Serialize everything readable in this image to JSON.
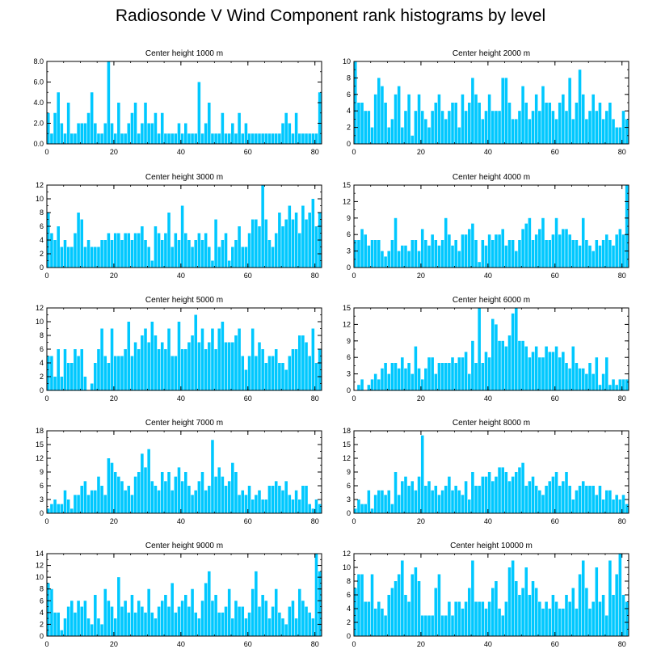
{
  "title": "Radiosonde V Wind Component rank histograms by level",
  "bar_color": "#00c8ff",
  "bar_edge_color": "#ffffff",
  "axis_color": "#000000",
  "chart_data": [
    {
      "type": "bar",
      "title": "Center height 1000 m",
      "xlim": [
        0,
        82
      ],
      "ylim": [
        0,
        8
      ],
      "yticks": [
        0,
        2,
        4,
        6,
        8
      ],
      "ytick_labels": [
        "0.0",
        "2.0",
        "4.0",
        "6.0",
        "8.0"
      ],
      "xticks": [
        0,
        20,
        40,
        60,
        80
      ],
      "xtick_labels": [
        "0",
        "20",
        "40",
        "60",
        "80"
      ],
      "values": [
        3,
        1,
        3,
        5,
        2,
        1,
        4,
        1,
        1,
        2,
        2,
        2,
        3,
        5,
        2,
        1,
        1,
        2,
        8,
        2,
        1,
        4,
        1,
        1,
        2,
        3,
        4,
        1,
        2,
        4,
        2,
        2,
        3,
        1,
        3,
        1,
        1,
        1,
        1,
        2,
        1,
        2,
        1,
        1,
        1,
        6,
        1,
        2,
        4,
        1,
        1,
        1,
        3,
        1,
        1,
        2,
        1,
        3,
        1,
        2,
        1,
        1,
        1,
        1,
        1,
        1,
        1,
        1,
        1,
        1,
        2,
        3,
        2,
        1,
        3,
        1,
        1,
        1,
        1,
        1,
        1,
        5
      ]
    },
    {
      "type": "bar",
      "title": "Center height 2000 m",
      "xlim": [
        0,
        82
      ],
      "ylim": [
        0,
        10
      ],
      "yticks": [
        0,
        2,
        4,
        6,
        8,
        10
      ],
      "ytick_labels": [
        "0",
        "2",
        "4",
        "6",
        "8",
        "10"
      ],
      "xticks": [
        0,
        20,
        40,
        60,
        80
      ],
      "xtick_labels": [
        "0",
        "20",
        "40",
        "60",
        "80"
      ],
      "values": [
        10,
        5,
        5,
        4,
        4,
        2,
        6,
        8,
        7,
        5,
        2,
        3,
        6,
        7,
        2,
        4,
        6,
        1,
        4,
        6,
        4,
        3,
        2,
        4,
        5,
        6,
        4,
        3,
        4,
        5,
        5,
        2,
        6,
        4,
        5,
        8,
        6,
        5,
        3,
        4,
        6,
        4,
        4,
        4,
        8,
        8,
        5,
        3,
        3,
        4,
        7,
        5,
        3,
        4,
        6,
        4,
        7,
        5,
        5,
        4,
        3,
        5,
        6,
        4,
        8,
        3,
        5,
        9,
        6,
        3,
        4,
        6,
        4,
        5,
        3,
        4,
        5,
        3,
        2,
        2,
        4,
        3
      ]
    },
    {
      "type": "bar",
      "title": "Center height 3000 m",
      "xlim": [
        0,
        82
      ],
      "ylim": [
        0,
        12
      ],
      "yticks": [
        0,
        2,
        4,
        6,
        8,
        10,
        12
      ],
      "ytick_labels": [
        "0",
        "2",
        "4",
        "6",
        "8",
        "10",
        "12"
      ],
      "xticks": [
        0,
        20,
        40,
        60,
        80
      ],
      "xtick_labels": [
        "0",
        "20",
        "40",
        "60",
        "80"
      ],
      "values": [
        8,
        5,
        4,
        6,
        3,
        4,
        3,
        3,
        5,
        8,
        7,
        3,
        4,
        3,
        3,
        3,
        4,
        4,
        5,
        4,
        5,
        5,
        4,
        5,
        5,
        4,
        5,
        5,
        6,
        4,
        3,
        1,
        6,
        5,
        4,
        5,
        8,
        3,
        5,
        4,
        9,
        5,
        4,
        3,
        4,
        5,
        4,
        5,
        3,
        1,
        7,
        3,
        4,
        5,
        1,
        3,
        4,
        6,
        3,
        3,
        5,
        7,
        7,
        6,
        12,
        7,
        4,
        3,
        5,
        8,
        6,
        7,
        9,
        7,
        8,
        5,
        9,
        7,
        8,
        10,
        6,
        8
      ]
    },
    {
      "type": "bar",
      "title": "Center height 4000 m",
      "xlim": [
        0,
        82
      ],
      "ylim": [
        0,
        15
      ],
      "yticks": [
        0,
        3,
        6,
        9,
        12,
        15
      ],
      "ytick_labels": [
        "0",
        "3",
        "6",
        "9",
        "12",
        "15"
      ],
      "xticks": [
        0,
        20,
        40,
        60,
        80
      ],
      "xtick_labels": [
        "0",
        "20",
        "40",
        "60",
        "80"
      ],
      "values": [
        5,
        5,
        7,
        6,
        4,
        5,
        5,
        5,
        3,
        2,
        3,
        5,
        9,
        3,
        4,
        4,
        3,
        5,
        5,
        3,
        7,
        5,
        4,
        6,
        5,
        4,
        5,
        9,
        6,
        4,
        5,
        3,
        6,
        6,
        7,
        8,
        5,
        1,
        5,
        4,
        6,
        5,
        6,
        6,
        7,
        4,
        5,
        5,
        3,
        5,
        7,
        8,
        9,
        5,
        6,
        7,
        9,
        5,
        5,
        6,
        9,
        6,
        7,
        7,
        6,
        5,
        5,
        4,
        9,
        5,
        4,
        3,
        5,
        4,
        5,
        6,
        5,
        4,
        6,
        7,
        6,
        15
      ]
    },
    {
      "type": "bar",
      "title": "Center height 5000 m",
      "xlim": [
        0,
        82
      ],
      "ylim": [
        0,
        12
      ],
      "yticks": [
        0,
        2,
        4,
        6,
        8,
        10,
        12
      ],
      "ytick_labels": [
        "0",
        "2",
        "4",
        "6",
        "8",
        "10",
        "12"
      ],
      "xticks": [
        0,
        20,
        40,
        60,
        80
      ],
      "xtick_labels": [
        "0",
        "20",
        "40",
        "60",
        "80"
      ],
      "values": [
        5,
        5,
        2,
        6,
        2,
        6,
        4,
        4,
        6,
        5,
        6,
        2,
        0,
        1,
        4,
        6,
        9,
        5,
        4,
        9,
        5,
        5,
        5,
        6,
        10,
        5,
        7,
        6,
        8,
        9,
        7,
        10,
        8,
        6,
        7,
        6,
        9,
        5,
        5,
        10,
        6,
        6,
        7,
        8,
        11,
        7,
        9,
        6,
        7,
        9,
        6,
        9,
        10,
        7,
        7,
        7,
        8,
        9,
        5,
        3,
        5,
        9,
        5,
        7,
        6,
        4,
        5,
        5,
        6,
        4,
        4,
        3,
        5,
        6,
        6,
        8,
        8,
        7,
        5,
        9,
        4,
        6
      ]
    },
    {
      "type": "bar",
      "title": "Center height 6000 m",
      "xlim": [
        0,
        82
      ],
      "ylim": [
        0,
        15
      ],
      "yticks": [
        0,
        3,
        6,
        9,
        12,
        15
      ],
      "ytick_labels": [
        "0",
        "3",
        "6",
        "9",
        "12",
        "15"
      ],
      "xticks": [
        0,
        20,
        40,
        60,
        80
      ],
      "xtick_labels": [
        "0",
        "20",
        "40",
        "60",
        "80"
      ],
      "values": [
        0,
        1,
        2,
        0,
        1,
        2,
        3,
        2,
        4,
        5,
        3,
        5,
        5,
        4,
        6,
        4,
        5,
        3,
        8,
        4,
        2,
        4,
        6,
        6,
        3,
        5,
        5,
        5,
        5,
        6,
        5,
        6,
        6,
        7,
        3,
        9,
        5,
        15,
        5,
        7,
        6,
        13,
        12,
        9,
        9,
        8,
        10,
        14,
        15,
        9,
        9,
        8,
        6,
        7,
        8,
        6,
        6,
        8,
        7,
        7,
        8,
        6,
        7,
        5,
        4,
        8,
        5,
        4,
        4,
        3,
        5,
        3,
        6,
        1,
        3,
        6,
        1,
        2,
        1,
        2,
        2,
        2
      ]
    },
    {
      "type": "bar",
      "title": "Center height 7000 m",
      "xlim": [
        0,
        82
      ],
      "ylim": [
        0,
        18
      ],
      "yticks": [
        0,
        3,
        6,
        9,
        12,
        15,
        18
      ],
      "ytick_labels": [
        "0",
        "3",
        "6",
        "9",
        "12",
        "15",
        "18"
      ],
      "xticks": [
        0,
        20,
        40,
        60,
        80
      ],
      "xtick_labels": [
        "0",
        "20",
        "40",
        "60",
        "80"
      ],
      "values": [
        1,
        2,
        3,
        2,
        2,
        5,
        3,
        1,
        4,
        4,
        6,
        7,
        4,
        5,
        5,
        8,
        6,
        4,
        12,
        11,
        9,
        8,
        7,
        5,
        6,
        4,
        8,
        9,
        13,
        10,
        14,
        7,
        6,
        5,
        9,
        7,
        9,
        5,
        8,
        10,
        7,
        9,
        6,
        4,
        5,
        7,
        9,
        5,
        6,
        16,
        8,
        10,
        8,
        6,
        7,
        11,
        9,
        4,
        5,
        4,
        6,
        3,
        4,
        5,
        3,
        3,
        6,
        6,
        7,
        6,
        5,
        7,
        4,
        3,
        5,
        3,
        6,
        6,
        2,
        1,
        3,
        2
      ]
    },
    {
      "type": "bar",
      "title": "Center height 8000 m",
      "xlim": [
        0,
        82
      ],
      "ylim": [
        0,
        18
      ],
      "yticks": [
        0,
        3,
        6,
        9,
        12,
        15,
        18
      ],
      "ytick_labels": [
        "0",
        "3",
        "6",
        "9",
        "12",
        "15",
        "18"
      ],
      "xticks": [
        0,
        20,
        40,
        60,
        80
      ],
      "xtick_labels": [
        "0",
        "20",
        "40",
        "60",
        "80"
      ],
      "values": [
        1,
        3,
        2,
        2,
        5,
        1,
        4,
        5,
        5,
        4,
        5,
        2,
        9,
        4,
        7,
        8,
        6,
        7,
        5,
        8,
        17,
        6,
        7,
        5,
        6,
        4,
        5,
        6,
        8,
        5,
        6,
        5,
        4,
        7,
        3,
        9,
        6,
        6,
        8,
        8,
        9,
        7,
        8,
        10,
        10,
        9,
        7,
        8,
        9,
        10,
        11,
        6,
        7,
        8,
        6,
        5,
        4,
        6,
        7,
        8,
        9,
        6,
        7,
        9,
        6,
        3,
        5,
        6,
        7,
        6,
        6,
        6,
        4,
        6,
        3,
        5,
        5,
        3,
        4,
        3,
        4,
        2
      ]
    },
    {
      "type": "bar",
      "title": "Center height 9000 m",
      "xlim": [
        0,
        82
      ],
      "ylim": [
        0,
        14
      ],
      "yticks": [
        0,
        2,
        4,
        6,
        8,
        10,
        12,
        14
      ],
      "ytick_labels": [
        "0",
        "2",
        "4",
        "6",
        "8",
        "10",
        "12",
        "14"
      ],
      "xticks": [
        0,
        20,
        40,
        60,
        80
      ],
      "xtick_labels": [
        "0",
        "20",
        "40",
        "60",
        "80"
      ],
      "values": [
        9,
        8,
        4,
        4,
        1,
        3,
        5,
        6,
        4,
        6,
        5,
        6,
        3,
        2,
        7,
        3,
        2,
        8,
        6,
        5,
        3,
        10,
        5,
        6,
        4,
        7,
        4,
        6,
        5,
        4,
        8,
        4,
        3,
        5,
        6,
        7,
        5,
        9,
        4,
        5,
        6,
        7,
        5,
        8,
        4,
        3,
        6,
        9,
        11,
        6,
        7,
        4,
        4,
        5,
        8,
        3,
        6,
        5,
        5,
        3,
        4,
        8,
        11,
        5,
        7,
        6,
        3,
        5,
        8,
        4,
        3,
        2,
        5,
        6,
        3,
        8,
        6,
        5,
        4,
        3,
        14,
        11
      ]
    },
    {
      "type": "bar",
      "title": "Center height 10000 m",
      "xlim": [
        0,
        82
      ],
      "ylim": [
        0,
        12
      ],
      "yticks": [
        0,
        2,
        4,
        6,
        8,
        10,
        12
      ],
      "ytick_labels": [
        "0",
        "2",
        "4",
        "6",
        "8",
        "10",
        "12"
      ],
      "xticks": [
        0,
        20,
        40,
        60,
        80
      ],
      "xtick_labels": [
        "0",
        "20",
        "40",
        "60",
        "80"
      ],
      "values": [
        7,
        9,
        9,
        5,
        5,
        9,
        4,
        5,
        4,
        3,
        6,
        7,
        8,
        9,
        11,
        6,
        5,
        9,
        10,
        8,
        3,
        3,
        3,
        3,
        7,
        9,
        3,
        3,
        5,
        3,
        5,
        5,
        4,
        5,
        7,
        11,
        5,
        5,
        5,
        4,
        5,
        7,
        8,
        4,
        3,
        5,
        10,
        11,
        8,
        6,
        7,
        10,
        6,
        8,
        7,
        5,
        4,
        5,
        4,
        6,
        5,
        4,
        4,
        6,
        5,
        7,
        4,
        9,
        11,
        7,
        4,
        5,
        10,
        5,
        6,
        3,
        11,
        6,
        9,
        12,
        6,
        5
      ]
    }
  ]
}
